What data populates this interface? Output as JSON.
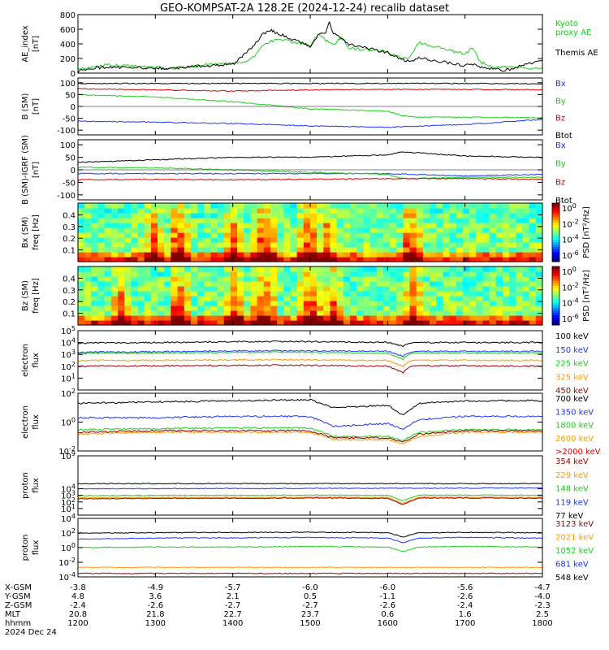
{
  "title": "GEO-KOMPSAT-2A 128.2E (2024-12-24) recalib dataset",
  "colors": {
    "black": "#000000",
    "blue": "#1a33ff",
    "green": "#19d019",
    "red": "#e00000",
    "orange": "#ff9900",
    "darkred": "#990000",
    "kyoto": "#00dd00",
    "teal": "#00b3b3"
  },
  "chart_data": [
    {
      "type": "line",
      "panel": "ae",
      "ylabel": "AE_index\n[nT]",
      "ylim": [
        0,
        800
      ],
      "yticks": [
        "800",
        "600",
        "400",
        "200",
        "0"
      ],
      "legend": [
        "Kyoto\nproxy AE",
        "Themis AE"
      ],
      "series": [
        {
          "name": "Kyoto proxy AE",
          "color": "green",
          "x": [
            1200,
            1220,
            1240,
            1300,
            1320,
            1340,
            1400,
            1420,
            1430,
            1440,
            1450,
            1455,
            1500,
            1510,
            1520,
            1530,
            1540,
            1550,
            1600,
            1610,
            1620,
            1630,
            1640,
            1700,
            1710,
            1720,
            1740,
            1750,
            1800
          ],
          "y": [
            50,
            90,
            110,
            80,
            60,
            90,
            140,
            160,
            250,
            380,
            430,
            480,
            380,
            540,
            450,
            380,
            500,
            340,
            300,
            230,
            200,
            230,
            420,
            260,
            350,
            150,
            70,
            80,
            60
          ]
        },
        {
          "name": "Themis AE",
          "color": "black",
          "x": [
            1200,
            1220,
            1240,
            1300,
            1320,
            1340,
            1400,
            1420,
            1430,
            1440,
            1450,
            1455,
            1500,
            1510,
            1520,
            1525,
            1530,
            1540,
            1550,
            1600,
            1610,
            1620,
            1630,
            1640,
            1700,
            1710,
            1720,
            1740,
            1750,
            1800
          ],
          "y": [
            20,
            70,
            80,
            70,
            60,
            80,
            120,
            300,
            420,
            550,
            580,
            560,
            360,
            520,
            560,
            700,
            540,
            470,
            390,
            280,
            220,
            180,
            160,
            210,
            100,
            120,
            80,
            60,
            30,
            180
          ]
        }
      ]
    },
    {
      "type": "line",
      "panel": "bsm",
      "ylabel": "B (SM)\n[nT]",
      "ylim": [
        -120,
        120
      ],
      "yticks": [
        "100",
        "50",
        "0",
        "-50",
        "-100"
      ],
      "legend": [
        "Bx",
        "By",
        "Bz",
        "Btot"
      ],
      "series": [
        {
          "name": "Bx",
          "color": "blue",
          "x": [
            1200,
            1300,
            1400,
            1500,
            1600,
            1700,
            1800
          ],
          "y": [
            -62,
            -66,
            -72,
            -82,
            -88,
            -76,
            -55
          ]
        },
        {
          "name": "By",
          "color": "green",
          "x": [
            1200,
            1300,
            1400,
            1500,
            1600,
            1620,
            1640,
            1700,
            1800
          ],
          "y": [
            50,
            40,
            20,
            -10,
            -20,
            -40,
            -45,
            -45,
            -48
          ]
        },
        {
          "name": "Bz",
          "color": "red",
          "x": [
            1200,
            1300,
            1400,
            1500,
            1600,
            1700,
            1800
          ],
          "y": [
            75,
            70,
            65,
            70,
            72,
            72,
            70
          ]
        },
        {
          "name": "Btot",
          "color": "black",
          "x": [
            1200,
            1300,
            1400,
            1500,
            1600,
            1700,
            1800
          ],
          "y": [
            97,
            97,
            97,
            97,
            97,
            97,
            96
          ]
        }
      ]
    },
    {
      "type": "line",
      "panel": "bdev",
      "ylabel": "B (SM)-IGRF (SM)\n[nT]",
      "ylim": [
        -120,
        120
      ],
      "yticks": [
        "100",
        "50",
        "0",
        "-50",
        "-100"
      ],
      "legend": [
        "Bx",
        "By",
        "Bz",
        "Btot"
      ],
      "series": [
        {
          "name": "Bx",
          "color": "blue",
          "x": [
            1200,
            1300,
            1400,
            1500,
            1600,
            1700,
            1800
          ],
          "y": [
            -15,
            -15,
            -15,
            -15,
            -15,
            -25,
            -18
          ]
        },
        {
          "name": "By",
          "color": "green",
          "x": [
            1200,
            1300,
            1400,
            1500,
            1600,
            1620,
            1700,
            1800
          ],
          "y": [
            10,
            8,
            0,
            -10,
            -18,
            -35,
            -30,
            -30
          ]
        },
        {
          "name": "Bz",
          "color": "red",
          "x": [
            1200,
            1300,
            1400,
            1500,
            1600,
            1700,
            1800
          ],
          "y": [
            -40,
            -38,
            -40,
            -38,
            -35,
            -35,
            -38
          ]
        },
        {
          "name": "Btot",
          "color": "black",
          "x": [
            1200,
            1300,
            1400,
            1500,
            1600,
            1620,
            1700,
            1800
          ],
          "y": [
            30,
            40,
            50,
            50,
            60,
            72,
            55,
            50
          ]
        }
      ]
    },
    {
      "type": "heatmap",
      "panel": "bxspec",
      "ylabel": "Bx (SM)\nfreq [Hz]",
      "ylim": [
        0,
        0.5
      ],
      "yticks": [
        "0.4",
        "0.3",
        "0.2",
        "0.1"
      ],
      "colorbar_label": "PSD [nT²/Hz]",
      "colorbar_ticks": [
        "10^0",
        "10^-2",
        "10^-4",
        "10^-6"
      ],
      "enhanced_times": [
        1300,
        1330,
        1400,
        1440,
        1500,
        1520,
        1630
      ]
    },
    {
      "type": "heatmap",
      "panel": "bzspec",
      "ylabel": "Bz (SM)\nfreq [Hz]",
      "ylim": [
        0,
        0.5
      ],
      "yticks": [
        "0.4",
        "0.3",
        "0.2",
        "0.1"
      ],
      "colorbar_label": "PSD [nT²/Hz]",
      "colorbar_ticks": [
        "10^0",
        "10^-2",
        "10^-4",
        "10^-6"
      ],
      "enhanced_times": [
        1255,
        1330,
        1400,
        1440,
        1500,
        1530,
        1635
      ]
    },
    {
      "type": "line",
      "panel": "elow",
      "ylabel": "electron\nflux",
      "yscale": "log",
      "ylim": [
        1,
        100000
      ],
      "yticks": [
        "10^5",
        "10^4",
        "10^3",
        "10^2",
        "10^1"
      ],
      "legend": [
        "100 keV",
        "150 keV",
        "225 keV",
        "325 keV",
        "450 keV"
      ],
      "series": [
        {
          "name": "100 keV",
          "color": "black",
          "x": [
            1200,
            1300,
            1400,
            1500,
            1600,
            1620,
            1630,
            1640,
            1700,
            1800
          ],
          "y": [
            9000,
            10000,
            12000,
            12000,
            10000,
            5000,
            9000,
            10000,
            10000,
            10000
          ]
        },
        {
          "name": "150 keV",
          "color": "blue",
          "x": [
            1200,
            1300,
            1400,
            1500,
            1600,
            1620,
            1630,
            1640,
            1700,
            1800
          ],
          "y": [
            1500,
            1700,
            2000,
            2000,
            1800,
            700,
            1500,
            1800,
            1800,
            1800
          ]
        },
        {
          "name": "225 keV",
          "color": "green",
          "x": [
            1200,
            1300,
            1400,
            1500,
            1600,
            1620,
            1630,
            1640,
            1700,
            1800
          ],
          "y": [
            1200,
            1300,
            1500,
            1500,
            1200,
            400,
            1200,
            1300,
            1300,
            1300
          ]
        },
        {
          "name": "325 keV",
          "color": "orange",
          "x": [
            1200,
            1300,
            1400,
            1500,
            1600,
            1620,
            1630,
            1640,
            1700,
            1800
          ],
          "y": [
            300,
            320,
            350,
            350,
            300,
            100,
            300,
            320,
            320,
            300
          ]
        },
        {
          "name": "450 keV",
          "color": "darkred",
          "x": [
            1200,
            1300,
            1400,
            1500,
            1600,
            1620,
            1630,
            1640,
            1700,
            1800
          ],
          "y": [
            100,
            110,
            120,
            120,
            100,
            30,
            100,
            110,
            110,
            100
          ]
        }
      ]
    },
    {
      "type": "line",
      "panel": "ehigh",
      "ylabel": "electron\nflux",
      "yscale": "log",
      "ylim": [
        0.01,
        100
      ],
      "yticks": [
        "10^2",
        "10^0",
        "10^-2"
      ],
      "legend": [
        "700 keV",
        "1350 keV",
        "1800 keV",
        "2600 keV",
        ">2000 keV"
      ],
      "series": [
        {
          "name": "700 keV",
          "color": "black",
          "x": [
            1200,
            1300,
            1400,
            1500,
            1530,
            1600,
            1620,
            1640,
            1700,
            1800
          ],
          "y": [
            20,
            25,
            30,
            35,
            10,
            15,
            3,
            20,
            30,
            30
          ]
        },
        {
          "name": "1350 keV",
          "color": "blue",
          "x": [
            1200,
            1300,
            1400,
            1500,
            1530,
            1600,
            1620,
            1640,
            1700,
            1800
          ],
          "y": [
            2,
            2,
            2.5,
            2.5,
            0.5,
            0.8,
            0.3,
            1.5,
            2.5,
            2.5
          ]
        },
        {
          "name": "1800 keV",
          "color": "green",
          "x": [
            1200,
            1300,
            1400,
            1500,
            1530,
            1600,
            1620,
            1640,
            1700,
            1800
          ],
          "y": [
            0.3,
            0.35,
            0.4,
            0.4,
            0.1,
            0.1,
            0.05,
            0.2,
            0.3,
            0.3
          ]
        },
        {
          "name": "2600 keV",
          "color": "orange",
          "x": [
            1200,
            1300,
            1400,
            1500,
            1530,
            1600,
            1620,
            1640,
            1700,
            1800
          ],
          "y": [
            0.15,
            0.2,
            0.2,
            0.2,
            0.06,
            0.06,
            0.03,
            0.1,
            0.2,
            0.2
          ]
        },
        {
          "name": ">2000 keV",
          "color": "darkred",
          "x": [
            1200,
            1300,
            1400,
            1500,
            1530,
            1600,
            1620,
            1640,
            1700,
            1800
          ],
          "y": [
            0.2,
            0.25,
            0.25,
            0.25,
            0.08,
            0.08,
            0.04,
            0.15,
            0.25,
            0.25
          ]
        }
      ]
    },
    {
      "type": "line",
      "panel": "plow",
      "ylabel": "proton\nflux",
      "yscale": "log",
      "ylim": [
        1,
        1000000000
      ],
      "yticks": [
        "10^9",
        "10^4",
        "10^3",
        "10^2",
        "10^1"
      ],
      "legend": [
        "354 keV",
        "229 keV",
        "148 keV",
        "119 keV",
        "77 keV"
      ],
      "series": [
        {
          "name": "354 keV",
          "color": "darkred",
          "x": [
            1200,
            1300,
            1400,
            1500,
            1600,
            1620,
            1640,
            1700,
            1800
          ],
          "y": [
            300,
            350,
            350,
            400,
            350,
            40,
            400,
            400,
            350
          ]
        },
        {
          "name": "229 keV",
          "color": "orange",
          "x": [
            1200,
            1300,
            1400,
            1500,
            1600,
            1620,
            1640,
            1700,
            1800
          ],
          "y": [
            450,
            500,
            500,
            550,
            500,
            60,
            550,
            550,
            500
          ]
        },
        {
          "name": "148 keV",
          "color": "green",
          "x": [
            1200,
            1300,
            1400,
            1500,
            1600,
            1620,
            1640,
            1700,
            1800
          ],
          "y": [
            900,
            1000,
            1000,
            1100,
            1000,
            150,
            1100,
            1100,
            1000
          ]
        },
        {
          "name": "119 keV",
          "color": "blue",
          "x": [
            1200,
            1300,
            1400,
            1500,
            1600,
            1700,
            1800
          ],
          "y": [
            10000,
            10500,
            11000,
            11500,
            12000,
            12500,
            13000
          ]
        },
        {
          "name": "77 keV",
          "color": "black",
          "x": [
            1200,
            1300,
            1400,
            1500,
            1600,
            1700,
            1800
          ],
          "y": [
            60000,
            60000,
            60000,
            60000,
            60000,
            60000,
            60000
          ]
        }
      ]
    },
    {
      "type": "line",
      "panel": "phigh",
      "ylabel": "proton\nflux",
      "yscale": "log",
      "ylim": [
        0.0001,
        10000
      ],
      "yticks": [
        "10^4",
        "10^2",
        "10^0",
        "10^-2",
        "10^-4"
      ],
      "legend": [
        "3123 keV",
        "2021 keV",
        "1052 keV",
        "681 keV",
        "548 keV"
      ],
      "series": [
        {
          "name": "3123 keV",
          "color": "darkred",
          "x": [
            1200,
            1300,
            1400,
            1500,
            1600,
            1700,
            1800
          ],
          "y": [
            0.0003,
            0.0003,
            0.0003,
            0.0003,
            0.0003,
            0.0003,
            0.0003
          ]
        },
        {
          "name": "2021 keV",
          "color": "orange",
          "x": [
            1200,
            1300,
            1400,
            1500,
            1600,
            1700,
            1800
          ],
          "y": [
            0.002,
            0.002,
            0.002,
            0.002,
            0.002,
            0.002,
            0.002
          ]
        },
        {
          "name": "1052 keV",
          "color": "green",
          "x": [
            1200,
            1300,
            1400,
            1500,
            1600,
            1620,
            1640,
            1700,
            1800
          ],
          "y": [
            1,
            1.2,
            1.2,
            1.5,
            1.2,
            0.3,
            1.2,
            1.5,
            1.2
          ]
        },
        {
          "name": "681 keV",
          "color": "blue",
          "x": [
            1200,
            1300,
            1400,
            1500,
            1600,
            1620,
            1640,
            1700,
            1800
          ],
          "y": [
            15,
            20,
            22,
            25,
            20,
            5,
            20,
            25,
            20
          ]
        },
        {
          "name": "548 keV",
          "color": "black",
          "x": [
            1200,
            1300,
            1400,
            1500,
            1600,
            1620,
            1640,
            1700,
            1800
          ],
          "y": [
            100,
            110,
            120,
            130,
            110,
            30,
            110,
            120,
            110
          ]
        }
      ]
    }
  ],
  "xaxis": {
    "xlim": [
      1200,
      1800
    ],
    "row_labels": [
      "X-GSM",
      "Y-GSM",
      "Z-GSM",
      "MLT",
      "hhmm"
    ],
    "date_label": "2024 Dec 24",
    "columns": [
      {
        "x": 1200,
        "vals": [
          "-3.8",
          "4.8",
          "-2.4",
          "20.8",
          "1200"
        ]
      },
      {
        "x": 1300,
        "vals": [
          "-4.9",
          "3.6",
          "-2.6",
          "21.8",
          "1300"
        ]
      },
      {
        "x": 1400,
        "vals": [
          "-5.7",
          "2.1",
          "-2.7",
          "22.7",
          "1400"
        ]
      },
      {
        "x": 1500,
        "vals": [
          "-6.0",
          "0.5",
          "-2.7",
          "23.7",
          "1500"
        ]
      },
      {
        "x": 1600,
        "vals": [
          "-6.0",
          "-1.1",
          "-2.6",
          "0.6",
          "1600"
        ]
      },
      {
        "x": 1700,
        "vals": [
          "-5.6",
          "-2.6",
          "-2.4",
          "1.6",
          "1700"
        ]
      },
      {
        "x": 1800,
        "vals": [
          "-4.7",
          "-4.0",
          "-2.3",
          "2.5",
          "1800"
        ]
      }
    ]
  }
}
